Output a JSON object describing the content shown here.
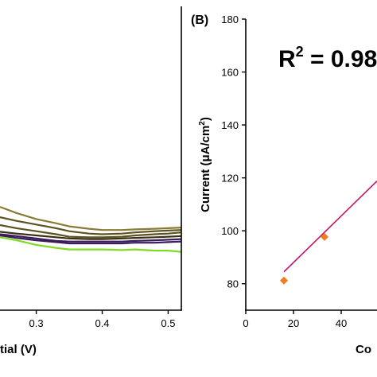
{
  "colors": {
    "axis": "#000000",
    "light_green": "#7ddc1f",
    "purple": "#3a1c5c",
    "dark_brown": "#3b2f14",
    "olive": "#5c5320",
    "khaki": "#8a7a36",
    "fit_line": "#c0186a",
    "marker": "#ef7d22"
  },
  "chart_data": [
    {
      "panel": "A",
      "type": "line",
      "xlabel": "tial (V)",
      "ylabel": "",
      "xlim": [
        0.245,
        0.52
      ],
      "ylim": [
        0,
        100
      ],
      "x_ticks": [
        0.3,
        0.4,
        0.5
      ],
      "x_tick_labels": [
        "0.3",
        "0.4",
        "0.5"
      ],
      "grid": false,
      "series": [
        {
          "color": "light_green",
          "x": [
            0.245,
            0.27,
            0.3,
            0.33,
            0.35,
            0.38,
            0.4,
            0.43,
            0.45,
            0.48,
            0.5,
            0.52
          ],
          "y": [
            24,
            23,
            21.5,
            20.5,
            20,
            20,
            20,
            19.8,
            20,
            19.6,
            19.6,
            19.2
          ]
        },
        {
          "color": "purple",
          "x": [
            0.245,
            0.27,
            0.3,
            0.33,
            0.35,
            0.38,
            0.4,
            0.43,
            0.45,
            0.48,
            0.5,
            0.52
          ],
          "y": [
            24.6,
            23.8,
            23,
            22.4,
            22,
            22,
            22,
            22,
            22.2,
            22.2,
            22.4,
            22.6
          ]
        },
        {
          "color": "purple",
          "x": [
            0.245,
            0.27,
            0.3,
            0.33,
            0.35,
            0.38,
            0.4,
            0.43,
            0.45,
            0.48,
            0.5,
            0.52
          ],
          "y": [
            25,
            24.4,
            23.6,
            22.8,
            22.6,
            22.6,
            22.6,
            22.6,
            22.8,
            23,
            23.2,
            23.4
          ]
        },
        {
          "color": "dark_brown",
          "x": [
            0.245,
            0.27,
            0.3,
            0.33,
            0.35,
            0.38,
            0.4,
            0.43,
            0.45,
            0.48,
            0.5,
            0.52
          ],
          "y": [
            25.8,
            25.2,
            24.6,
            24,
            23.6,
            23.4,
            23.4,
            23.6,
            23.8,
            24,
            24.2,
            24.4
          ]
        },
        {
          "color": "olive",
          "x": [
            0.245,
            0.27,
            0.3,
            0.33,
            0.35,
            0.38,
            0.4,
            0.43,
            0.45,
            0.48,
            0.5,
            0.52
          ],
          "y": [
            28,
            27,
            26,
            25,
            24.2,
            24,
            24,
            24.2,
            24.6,
            25,
            25.2,
            25.6
          ]
        },
        {
          "color": "olive",
          "x": [
            0.245,
            0.27,
            0.3,
            0.33,
            0.35,
            0.38,
            0.4,
            0.43,
            0.45,
            0.48,
            0.5,
            0.52
          ],
          "y": [
            30.6,
            29.4,
            28.2,
            27,
            26,
            25.2,
            25,
            25.2,
            25.6,
            26,
            26.2,
            26.4
          ]
        },
        {
          "color": "khaki",
          "x": [
            0.245,
            0.27,
            0.3,
            0.33,
            0.35,
            0.38,
            0.4,
            0.43,
            0.45,
            0.48,
            0.5,
            0.52
          ],
          "y": [
            34,
            32,
            30,
            28.6,
            27.6,
            26.8,
            26.4,
            26.4,
            26.6,
            26.8,
            27,
            27.2
          ]
        }
      ]
    },
    {
      "panel": "B",
      "panel_label": "(B)",
      "type": "scatter",
      "annotation": {
        "base": "R",
        "exponent": "2",
        "rest": " = 0.98"
      },
      "xlabel": "Co",
      "ylabel": "Current (μA/cm²)",
      "ylabel_parts": {
        "main": "Current (μA/cm",
        "sup": "2",
        "close": ")"
      },
      "xlim": [
        0,
        55
      ],
      "ylim": [
        70,
        180
      ],
      "x_ticks": [
        0,
        20,
        40
      ],
      "x_tick_labels": [
        "0",
        "20",
        "40"
      ],
      "y_ticks": [
        80,
        100,
        120,
        140,
        160,
        180
      ],
      "y_tick_labels": [
        "80",
        "100",
        "120",
        "140",
        "160",
        "180"
      ],
      "grid": false,
      "points": {
        "x": [
          16,
          33
        ],
        "y": [
          81.2,
          97.7
        ]
      },
      "fit_line": {
        "x": [
          16,
          55
        ],
        "y": [
          84.5,
          118.8
        ]
      }
    }
  ]
}
